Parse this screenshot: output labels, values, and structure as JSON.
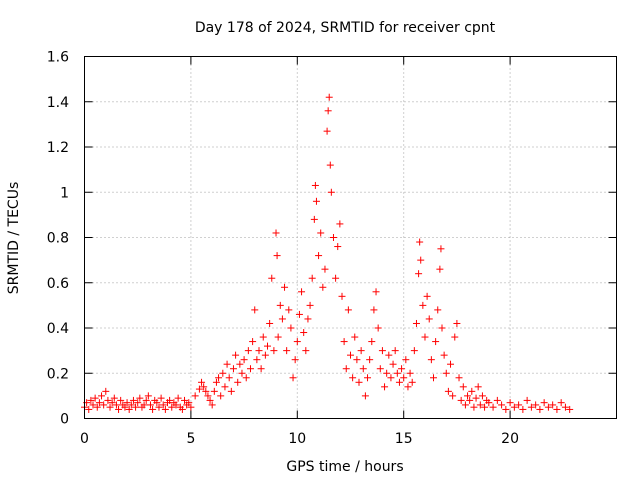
{
  "chart_data": {
    "type": "scatter",
    "title": "Day 178 of 2024, SRMTID for receiver cpnt",
    "xlabel": "GPS time / hours",
    "ylabel": "SRMTID / TECUs",
    "xlim": [
      0,
      25
    ],
    "ylim": [
      0,
      1.6
    ],
    "xticks": [
      "0",
      "5",
      "10",
      "15",
      "20"
    ],
    "yticks": [
      "0",
      "0.2",
      "0.4",
      "0.6",
      "0.8",
      "1",
      "1.2",
      "1.4",
      "1.6"
    ],
    "grid": true,
    "marker": "+",
    "color": "#ff0000",
    "series": [
      {
        "name": "SRMTID",
        "points": [
          [
            0.0,
            0.05
          ],
          [
            0.1,
            0.07
          ],
          [
            0.2,
            0.04
          ],
          [
            0.3,
            0.08
          ],
          [
            0.4,
            0.06
          ],
          [
            0.5,
            0.09
          ],
          [
            0.6,
            0.05
          ],
          [
            0.7,
            0.07
          ],
          [
            0.8,
            0.1
          ],
          [
            0.9,
            0.06
          ],
          [
            1.0,
            0.12
          ],
          [
            1.1,
            0.08
          ],
          [
            1.2,
            0.05
          ],
          [
            1.3,
            0.07
          ],
          [
            1.4,
            0.09
          ],
          [
            1.5,
            0.06
          ],
          [
            1.6,
            0.04
          ],
          [
            1.7,
            0.08
          ],
          [
            1.8,
            0.06
          ],
          [
            1.9,
            0.05
          ],
          [
            2.0,
            0.07
          ],
          [
            2.1,
            0.04
          ],
          [
            2.2,
            0.06
          ],
          [
            2.3,
            0.08
          ],
          [
            2.4,
            0.05
          ],
          [
            2.5,
            0.07
          ],
          [
            2.6,
            0.09
          ],
          [
            2.7,
            0.05
          ],
          [
            2.8,
            0.06
          ],
          [
            2.9,
            0.08
          ],
          [
            3.0,
            0.1
          ],
          [
            3.1,
            0.06
          ],
          [
            3.2,
            0.04
          ],
          [
            3.3,
            0.08
          ],
          [
            3.4,
            0.07
          ],
          [
            3.5,
            0.05
          ],
          [
            3.6,
            0.09
          ],
          [
            3.7,
            0.06
          ],
          [
            3.8,
            0.04
          ],
          [
            3.9,
            0.07
          ],
          [
            4.0,
            0.08
          ],
          [
            4.1,
            0.05
          ],
          [
            4.2,
            0.07
          ],
          [
            4.3,
            0.06
          ],
          [
            4.4,
            0.09
          ],
          [
            4.5,
            0.05
          ],
          [
            4.6,
            0.04
          ],
          [
            4.7,
            0.08
          ],
          [
            4.8,
            0.06
          ],
          [
            4.9,
            0.07
          ],
          [
            5.0,
            0.05
          ],
          [
            5.2,
            0.1
          ],
          [
            5.4,
            0.13
          ],
          [
            5.5,
            0.16
          ],
          [
            5.6,
            0.14
          ],
          [
            5.7,
            0.12
          ],
          [
            5.8,
            0.1
          ],
          [
            5.9,
            0.08
          ],
          [
            6.0,
            0.06
          ],
          [
            6.1,
            0.12
          ],
          [
            6.2,
            0.16
          ],
          [
            6.3,
            0.18
          ],
          [
            6.4,
            0.1
          ],
          [
            6.5,
            0.2
          ],
          [
            6.6,
            0.14
          ],
          [
            6.7,
            0.24
          ],
          [
            6.8,
            0.18
          ],
          [
            6.9,
            0.12
          ],
          [
            7.0,
            0.22
          ],
          [
            7.1,
            0.28
          ],
          [
            7.2,
            0.16
          ],
          [
            7.3,
            0.24
          ],
          [
            7.4,
            0.2
          ],
          [
            7.5,
            0.26
          ],
          [
            7.6,
            0.18
          ],
          [
            7.7,
            0.3
          ],
          [
            7.8,
            0.22
          ],
          [
            7.9,
            0.34
          ],
          [
            8.0,
            0.48
          ],
          [
            8.1,
            0.26
          ],
          [
            8.2,
            0.3
          ],
          [
            8.3,
            0.22
          ],
          [
            8.4,
            0.36
          ],
          [
            8.5,
            0.28
          ],
          [
            8.6,
            0.32
          ],
          [
            8.7,
            0.42
          ],
          [
            8.8,
            0.62
          ],
          [
            8.9,
            0.3
          ],
          [
            9.0,
            0.82
          ],
          [
            9.05,
            0.72
          ],
          [
            9.1,
            0.36
          ],
          [
            9.2,
            0.5
          ],
          [
            9.3,
            0.44
          ],
          [
            9.4,
            0.58
          ],
          [
            9.5,
            0.3
          ],
          [
            9.6,
            0.48
          ],
          [
            9.7,
            0.4
          ],
          [
            9.8,
            0.18
          ],
          [
            9.9,
            0.26
          ],
          [
            10.0,
            0.34
          ],
          [
            10.1,
            0.46
          ],
          [
            10.2,
            0.56
          ],
          [
            10.3,
            0.38
          ],
          [
            10.4,
            0.3
          ],
          [
            10.5,
            0.44
          ],
          [
            10.6,
            0.5
          ],
          [
            10.7,
            0.62
          ],
          [
            10.8,
            0.88
          ],
          [
            10.85,
            1.03
          ],
          [
            10.9,
            0.96
          ],
          [
            11.0,
            0.72
          ],
          [
            11.1,
            0.82
          ],
          [
            11.2,
            0.58
          ],
          [
            11.3,
            0.66
          ],
          [
            11.4,
            1.27
          ],
          [
            11.45,
            1.36
          ],
          [
            11.5,
            1.42
          ],
          [
            11.55,
            1.12
          ],
          [
            11.6,
            1.0
          ],
          [
            11.7,
            0.8
          ],
          [
            11.8,
            0.62
          ],
          [
            11.9,
            0.76
          ],
          [
            12.0,
            0.86
          ],
          [
            12.1,
            0.54
          ],
          [
            12.2,
            0.34
          ],
          [
            12.3,
            0.22
          ],
          [
            12.4,
            0.48
          ],
          [
            12.5,
            0.28
          ],
          [
            12.6,
            0.18
          ],
          [
            12.7,
            0.36
          ],
          [
            12.8,
            0.26
          ],
          [
            12.9,
            0.16
          ],
          [
            13.0,
            0.3
          ],
          [
            13.1,
            0.22
          ],
          [
            13.2,
            0.1
          ],
          [
            13.3,
            0.18
          ],
          [
            13.4,
            0.26
          ],
          [
            13.5,
            0.34
          ],
          [
            13.6,
            0.48
          ],
          [
            13.7,
            0.56
          ],
          [
            13.8,
            0.4
          ],
          [
            13.9,
            0.22
          ],
          [
            14.0,
            0.3
          ],
          [
            14.1,
            0.14
          ],
          [
            14.2,
            0.2
          ],
          [
            14.3,
            0.28
          ],
          [
            14.4,
            0.18
          ],
          [
            14.5,
            0.24
          ],
          [
            14.6,
            0.3
          ],
          [
            14.7,
            0.2
          ],
          [
            14.8,
            0.16
          ],
          [
            14.9,
            0.22
          ],
          [
            15.0,
            0.18
          ],
          [
            15.1,
            0.26
          ],
          [
            15.2,
            0.14
          ],
          [
            15.3,
            0.2
          ],
          [
            15.4,
            0.16
          ],
          [
            15.5,
            0.3
          ],
          [
            15.6,
            0.42
          ],
          [
            15.7,
            0.64
          ],
          [
            15.75,
            0.78
          ],
          [
            15.8,
            0.7
          ],
          [
            15.9,
            0.5
          ],
          [
            16.0,
            0.36
          ],
          [
            16.1,
            0.54
          ],
          [
            16.2,
            0.44
          ],
          [
            16.3,
            0.26
          ],
          [
            16.4,
            0.18
          ],
          [
            16.5,
            0.34
          ],
          [
            16.6,
            0.48
          ],
          [
            16.7,
            0.66
          ],
          [
            16.75,
            0.75
          ],
          [
            16.8,
            0.4
          ],
          [
            16.9,
            0.28
          ],
          [
            17.0,
            0.2
          ],
          [
            17.1,
            0.12
          ],
          [
            17.2,
            0.24
          ],
          [
            17.3,
            0.1
          ],
          [
            17.4,
            0.36
          ],
          [
            17.5,
            0.42
          ],
          [
            17.6,
            0.18
          ],
          [
            17.7,
            0.08
          ],
          [
            17.8,
            0.14
          ],
          [
            17.9,
            0.06
          ],
          [
            18.0,
            0.1
          ],
          [
            18.1,
            0.08
          ],
          [
            18.2,
            0.12
          ],
          [
            18.3,
            0.05
          ],
          [
            18.4,
            0.09
          ],
          [
            18.5,
            0.14
          ],
          [
            18.6,
            0.06
          ],
          [
            18.7,
            0.1
          ],
          [
            18.8,
            0.05
          ],
          [
            18.9,
            0.08
          ],
          [
            19.0,
            0.07
          ],
          [
            19.2,
            0.05
          ],
          [
            19.4,
            0.08
          ],
          [
            19.6,
            0.06
          ],
          [
            19.8,
            0.04
          ],
          [
            20.0,
            0.07
          ],
          [
            20.2,
            0.05
          ],
          [
            20.4,
            0.06
          ],
          [
            20.6,
            0.04
          ],
          [
            20.8,
            0.08
          ],
          [
            21.0,
            0.05
          ],
          [
            21.2,
            0.06
          ],
          [
            21.4,
            0.04
          ],
          [
            21.6,
            0.07
          ],
          [
            21.8,
            0.05
          ],
          [
            22.0,
            0.06
          ],
          [
            22.2,
            0.04
          ],
          [
            22.4,
            0.07
          ],
          [
            22.6,
            0.05
          ],
          [
            22.8,
            0.04
          ]
        ]
      }
    ]
  }
}
